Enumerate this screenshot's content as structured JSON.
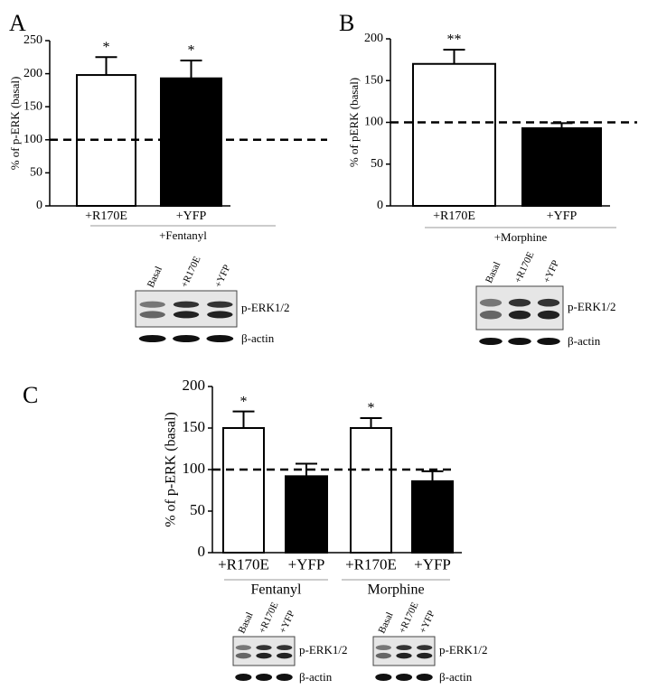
{
  "chart_data": [
    {
      "type": "bar",
      "panel": "A",
      "ylabel": "% of p-ERK (basal)",
      "categories": [
        "+R170E",
        "+YFP"
      ],
      "values": [
        198,
        193
      ],
      "errors": [
        27,
        27
      ],
      "colors": [
        "#ffffff",
        "#000000"
      ],
      "significance": [
        "*",
        "*"
      ],
      "reference": 100,
      "groups": [
        "+Fentanyl"
      ],
      "ylim": [
        0,
        250
      ],
      "yticks": [
        0,
        50,
        100,
        150,
        200,
        250
      ],
      "blots": [
        {
          "lanes": [
            "Basal",
            "+R170E",
            "+YFP"
          ],
          "bands": [
            "p-ERK1/2",
            "β-actin"
          ]
        }
      ]
    },
    {
      "type": "bar",
      "panel": "B",
      "ylabel": "% of pERK (basal)",
      "categories": [
        "+R170E",
        "+YFP"
      ],
      "values": [
        170,
        93
      ],
      "errors": [
        17,
        6
      ],
      "colors": [
        "#ffffff",
        "#000000"
      ],
      "significance": [
        "**",
        null
      ],
      "reference": 100,
      "groups": [
        "+Morphine"
      ],
      "ylim": [
        0,
        200
      ],
      "yticks": [
        0,
        50,
        100,
        150,
        200
      ],
      "blots": [
        {
          "lanes": [
            "Basal",
            "+R170E",
            "+YFP"
          ],
          "bands": [
            "p-ERK1/2",
            "β-actin"
          ]
        }
      ]
    },
    {
      "type": "bar",
      "panel": "C",
      "ylabel": "% of p-ERK (basal)",
      "categories": [
        "+R170E",
        "+YFP",
        "+R170E",
        "+YFP"
      ],
      "values": [
        150,
        92,
        150,
        86
      ],
      "errors": [
        20,
        15,
        12,
        12
      ],
      "colors": [
        "#ffffff",
        "#000000",
        "#ffffff",
        "#000000"
      ],
      "significance": [
        "*",
        null,
        "*",
        null
      ],
      "reference": 100,
      "groups": [
        "Fentanyl",
        "Morphine"
      ],
      "ylim": [
        0,
        200
      ],
      "yticks": [
        0,
        50,
        100,
        150,
        200
      ],
      "blots": [
        {
          "lanes": [
            "Basal",
            "+R170E",
            "+YFP"
          ],
          "bands": [
            "p-ERK1/2",
            "β-actin"
          ]
        },
        {
          "lanes": [
            "Basal",
            "+R170E",
            "+YFP"
          ],
          "bands": [
            "p-ERK1/2",
            "β-actin"
          ]
        }
      ]
    }
  ]
}
